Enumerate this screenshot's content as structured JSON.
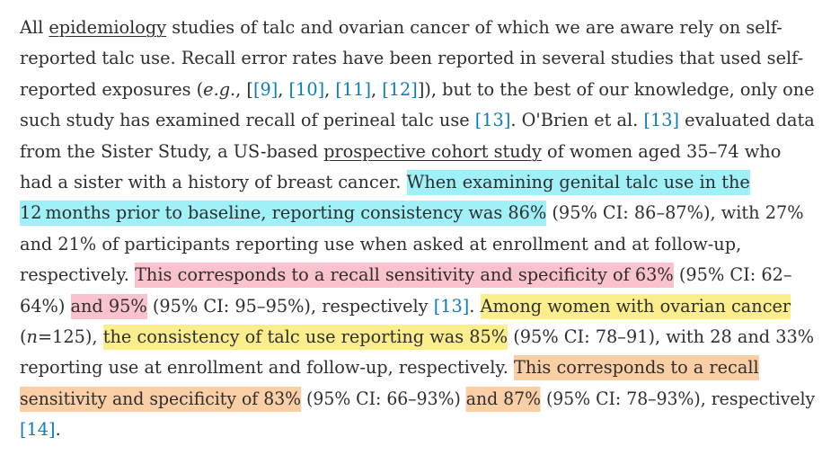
{
  "paragraph": {
    "lines": [
      {
        "segments": [
          {
            "text": "All "
          },
          {
            "text": "epidemiology",
            "kind": "term"
          },
          {
            "text": " studies of talc and ovarian cancer of which we are aware rely on self-"
          }
        ]
      },
      {
        "segments": [
          {
            "text": "reported talc use. Recall error rates have been reported in several studies that used self-"
          }
        ]
      },
      {
        "segments": [
          {
            "text": "reported exposures ("
          },
          {
            "text": "e.g.",
            "kind": "italic"
          },
          {
            "text": ", ["
          },
          {
            "text": "[9]",
            "kind": "link"
          },
          {
            "text": ", "
          },
          {
            "text": "[10]",
            "kind": "link"
          },
          {
            "text": ", "
          },
          {
            "text": "[11]",
            "kind": "link"
          },
          {
            "text": ", "
          },
          {
            "text": "[12]",
            "kind": "link"
          },
          {
            "text": "]), but to the best of our knowledge, only one"
          }
        ]
      },
      {
        "segments": [
          {
            "text": "such study has examined recall of perineal talc use "
          },
          {
            "text": "[13]",
            "kind": "link"
          },
          {
            "text": ". O'Brien et al. "
          },
          {
            "text": "[13]",
            "kind": "link"
          },
          {
            "text": " evaluated data"
          }
        ]
      },
      {
        "segments": [
          {
            "text": "from the Sister Study, a US-based "
          },
          {
            "text": "prospective cohort study",
            "kind": "term"
          },
          {
            "text": " of women aged 35–74 who"
          }
        ]
      },
      {
        "segments": [
          {
            "text": "had a sister with a history of breast cancer. "
          },
          {
            "text": "When examining genital talc use in the",
            "kind": "hl",
            "color": "cyan"
          }
        ]
      },
      {
        "segments": [
          {
            "text": "12 months prior to baseline, reporting consistency was 86%",
            "kind": "hl",
            "color": "cyan"
          },
          {
            "text": " (95% CI: 86–87%), with 27%"
          }
        ]
      },
      {
        "segments": [
          {
            "text": "and 21% of participants reporting use when asked at enrollment and at follow-up,"
          }
        ]
      },
      {
        "segments": [
          {
            "text": "respectively. "
          },
          {
            "text": "This corresponds to a recall sensitivity and specificity of 63%",
            "kind": "hl",
            "color": "pink"
          },
          {
            "text": " (95% CI: 62–"
          }
        ]
      },
      {
        "segments": [
          {
            "text": "64%) "
          },
          {
            "text": "and 95%",
            "kind": "hl",
            "color": "pink"
          },
          {
            "text": " (95% CI: 95–95%), respectively "
          },
          {
            "text": "[13]",
            "kind": "link"
          },
          {
            "text": ". "
          },
          {
            "text": "Among women with ovarian cancer",
            "kind": "hl",
            "color": "yellow"
          }
        ]
      },
      {
        "segments": [
          {
            "text": "("
          },
          {
            "text": "n",
            "kind": "italic"
          },
          {
            "text": "=125), "
          },
          {
            "text": "the consistency of talc use reporting was 85%",
            "kind": "hl",
            "color": "yellow"
          },
          {
            "text": " (95% CI: 78–91), with 28 and 33%"
          }
        ]
      },
      {
        "segments": [
          {
            "text": "reporting use at enrollment and follow-up, respectively. "
          },
          {
            "text": "This corresponds to a recall",
            "kind": "hl",
            "color": "orange"
          }
        ]
      },
      {
        "segments": [
          {
            "text": "sensitivity and specificity of 83%",
            "kind": "hl",
            "color": "orange"
          },
          {
            "text": " (95% CI: 66–93%) "
          },
          {
            "text": "and 87%",
            "kind": "hl",
            "color": "orange"
          },
          {
            "text": " (95% CI: 78–93%), respectively"
          }
        ]
      },
      {
        "segments": [
          {
            "text": "[14]",
            "kind": "link"
          },
          {
            "text": "."
          }
        ]
      }
    ]
  },
  "highlight_colors": {
    "cyan": "#9ff0f7",
    "pink": "#f9c2cc",
    "yellow": "#fcee8c",
    "orange": "#fbcfa6"
  },
  "link_color": "#0c7dbb",
  "text_color": "#2e2e2e"
}
